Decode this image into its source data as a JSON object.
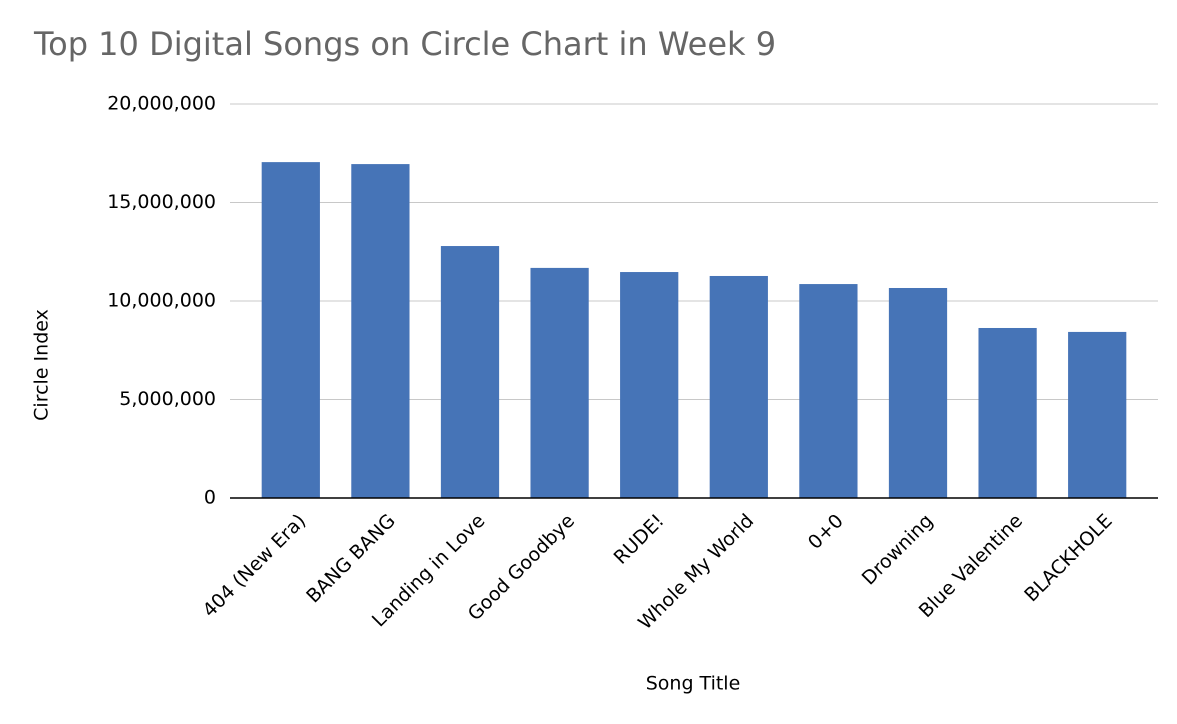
{
  "chart_data": {
    "type": "bar",
    "title": "Top 10 Digital Songs on Circle Chart in Week 9",
    "x_label": "Song Title",
    "y_label": "Circle Index",
    "categories": [
      "404 (New Era)",
      "BANG BANG",
      "Landing in Love",
      "Good Goodbye",
      "RUDE!",
      "Whole My World",
      "0+0",
      "Drowning",
      "Blue Valentine",
      "BLACKHOLE"
    ],
    "values": [
      17050000,
      16950000,
      12790000,
      11680000,
      11470000,
      11270000,
      10860000,
      10660000,
      8630000,
      8430000
    ],
    "color": "#4674b7",
    "ylim": [
      0,
      20000000
    ],
    "yticks": [
      0,
      {
        "value": 5000000,
        "label": "5,000,000"
      },
      {
        "value": 10000000,
        "label": "10,000,000"
      },
      {
        "value": 15000000,
        "label": "15,000,000"
      },
      {
        "value": 20000000,
        "label": "20,000,000"
      }
    ],
    "grid": true
  }
}
